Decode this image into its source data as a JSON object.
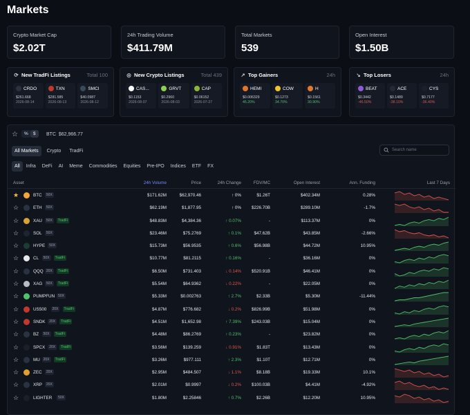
{
  "page_title": "Markets",
  "stats": [
    {
      "label": "Crypto Market Cap",
      "value": "$2.02T"
    },
    {
      "label": "24h Trading Volume",
      "value": "$411.79M"
    },
    {
      "label": "Total Markets",
      "value": "539"
    },
    {
      "label": "Open Interest",
      "value": "$1.50B"
    }
  ],
  "cards": [
    {
      "icon": "tradfi-icon",
      "glyph": "⟳",
      "title": "New TradFi Listings",
      "total": "Total 100",
      "items": [
        {
          "sym": "CRDO",
          "color": "#2a3140",
          "price": "$261.668",
          "sub": "2026-08-14",
          "dir": ""
        },
        {
          "sym": "TXN",
          "color": "#c0392b",
          "price": "$281.585",
          "sub": "2026-08-13",
          "dir": ""
        },
        {
          "sym": "SMCI",
          "color": "#3b4a5a",
          "price": "$40.0987",
          "sub": "2026-08-12",
          "dir": ""
        }
      ]
    },
    {
      "icon": "crypto-icon",
      "glyph": "◎",
      "title": "New Crypto Listings",
      "total": "Total 439",
      "items": [
        {
          "sym": "CAS...",
          "color": "#ffffff",
          "price": "$0.1153",
          "sub": "2026-08-07",
          "dir": ""
        },
        {
          "sym": "GRVT",
          "color": "#8fd14f",
          "price": "$0.2960",
          "sub": "2026-08-03",
          "dir": ""
        },
        {
          "sym": "CAP",
          "color": "#8fb43a",
          "price": "$0.06152",
          "sub": "2026-07-27",
          "dir": ""
        }
      ]
    },
    {
      "icon": "trending-up-icon",
      "glyph": "↗",
      "title": "Top Gainers",
      "total": "24h",
      "items": [
        {
          "sym": "HEMI",
          "color": "#e0762a",
          "price": "$0.006329",
          "sub": "45.20%",
          "dir": "up"
        },
        {
          "sym": "COW",
          "color": "#f2c230",
          "price": "$0.1273",
          "sub": "34.70%",
          "dir": "up"
        },
        {
          "sym": "H",
          "color": "#e07a2a",
          "price": "$0.1561",
          "sub": "30.90%",
          "dir": "up"
        }
      ]
    },
    {
      "icon": "trending-down-icon",
      "glyph": "↘",
      "title": "Top Losers",
      "total": "24h",
      "items": [
        {
          "sym": "BEAT",
          "color": "#8e5bd6",
          "price": "$0.3442",
          "sub": "-46.50%",
          "dir": "dn"
        },
        {
          "sym": "ACE",
          "color": "#222a36",
          "price": "$0.1489",
          "sub": "-38.10%",
          "dir": "dn"
        },
        {
          "sym": "CYS",
          "color": "#1a1f29",
          "price": "$0.7177",
          "sub": "-36.40%",
          "dir": "dn"
        }
      ]
    }
  ],
  "toolbar": {
    "percent": "%",
    "dollar": "$",
    "btc_label": "BTC",
    "btc_price": "$62,966.77"
  },
  "tabs": [
    "All Markets",
    "Crypto",
    "TradFi"
  ],
  "search": {
    "placeholder": "Search name"
  },
  "categories": [
    "All",
    "Infra",
    "DeFi",
    "AI",
    "Meme",
    "Commodities",
    "Equities",
    "Pre-IPO",
    "Indices",
    "ETF",
    "FX"
  ],
  "columns": {
    "asset": "Asset",
    "volume": "24h Volume",
    "price": "Price",
    "change": "24h Change",
    "fdv": "FDV/MC",
    "oi": "Open Interest",
    "funding": "Ann. Funding",
    "last7": "Last 7 Days"
  },
  "rows": [
    {
      "sym": "BTC",
      "lev": "50X",
      "tradfi": "",
      "color": "#f2a33a",
      "fav": true,
      "vol": "$171.62M",
      "price": "$62,970.46",
      "chg": "0%",
      "dir": "up",
      "fdv": "$1.26T",
      "oi": "$402.34M",
      "fund": "0.28%",
      "trend": "down",
      "spark": [
        8,
        7,
        9,
        8,
        10,
        9,
        11,
        10,
        12,
        11,
        12,
        13
      ]
    },
    {
      "sym": "ETH",
      "lev": "50X",
      "tradfi": "",
      "color": "#2a3140",
      "fav": false,
      "vol": "$62.19M",
      "price": "$1,877.95",
      "chg": "0%",
      "dir": "up",
      "fdv": "$226.70B",
      "oi": "$289.10M",
      "fund": "-1.7%",
      "trend": "down",
      "spark": [
        6,
        7,
        6,
        8,
        9,
        8,
        10,
        9,
        11,
        10,
        12,
        12
      ]
    },
    {
      "sym": "XAU",
      "lev": "50X",
      "tradfi": "TradFi",
      "color": "#d6a531",
      "fav": false,
      "vol": "$48.83M",
      "price": "$4,384.36",
      "chg": "0.07%",
      "dir": "up",
      "fdv": "-",
      "oi": "$113.37M",
      "fund": "0%",
      "trend": "up",
      "spark": [
        12,
        11,
        12,
        10,
        9,
        10,
        8,
        7,
        8,
        6,
        7,
        5
      ]
    },
    {
      "sym": "SOL",
      "lev": "50X",
      "tradfi": "",
      "color": "#1d2530",
      "fav": false,
      "vol": "$23.46M",
      "price": "$75.2769",
      "chg": "0.1%",
      "dir": "up",
      "fdv": "$47.62B",
      "oi": "$43.85M",
      "fund": "-2.66%",
      "trend": "down",
      "spark": [
        5,
        7,
        6,
        8,
        9,
        8,
        10,
        11,
        10,
        12,
        11,
        13
      ]
    },
    {
      "sym": "HYPE",
      "lev": "50X",
      "tradfi": "",
      "color": "#1b3b33",
      "fav": false,
      "vol": "$15.73M",
      "price": "$56.9535",
      "chg": "0.6%",
      "dir": "up",
      "fdv": "$56.98B",
      "oi": "$44.72M",
      "fund": "10.95%",
      "trend": "up",
      "spark": [
        12,
        11,
        10,
        11,
        9,
        8,
        9,
        7,
        6,
        7,
        5,
        4
      ]
    },
    {
      "sym": "CL",
      "lev": "50X",
      "tradfi": "TradFi",
      "color": "#e6e8ec",
      "fav": false,
      "vol": "$10.77M",
      "price": "$81.2115",
      "chg": "0.16%",
      "dir": "up",
      "fdv": "-",
      "oi": "$36.16M",
      "fund": "0%",
      "trend": "up",
      "spark": [
        11,
        12,
        10,
        9,
        10,
        8,
        9,
        7,
        8,
        6,
        5,
        6
      ]
    },
    {
      "sym": "QQQ",
      "lev": "20X",
      "tradfi": "TradFi",
      "color": "#2a3140",
      "fav": false,
      "vol": "$6.50M",
      "price": "$731.403",
      "chg": "0.14%",
      "dir": "dn",
      "fdv": "$520.91B",
      "oi": "$46.41M",
      "fund": "0%",
      "trend": "up",
      "spark": [
        10,
        12,
        11,
        9,
        10,
        8,
        7,
        8,
        6,
        7,
        5,
        6
      ]
    },
    {
      "sym": "XAG",
      "lev": "50X",
      "tradfi": "TradFi",
      "color": "#b8bcc4",
      "fav": false,
      "vol": "$5.54M",
      "price": "$64.9362",
      "chg": "0.22%",
      "dir": "dn",
      "fdv": "-",
      "oi": "$22.05M",
      "fund": "0%",
      "trend": "up",
      "spark": [
        12,
        10,
        11,
        9,
        10,
        8,
        9,
        7,
        8,
        6,
        7,
        5
      ]
    },
    {
      "sym": "PUMPFUN",
      "lev": "50X",
      "tradfi": "",
      "color": "#4fc36a",
      "fav": false,
      "vol": "$5.33M",
      "price": "$0.002763",
      "chg": "2.7%",
      "dir": "up",
      "fdv": "$2.33B",
      "oi": "$5.30M",
      "fund": "-11.44%",
      "trend": "up",
      "spark": [
        13,
        12,
        12,
        11,
        10,
        10,
        9,
        8,
        7,
        6,
        5,
        5
      ]
    },
    {
      "sym": "US500",
      "lev": "20X",
      "tradfi": "TradFi",
      "color": "#c0392b",
      "fav": false,
      "vol": "$4.87M",
      "price": "$776.682",
      "chg": "0.2%",
      "dir": "dn",
      "fdv": "$826.99B",
      "oi": "$51.98M",
      "fund": "0%",
      "trend": "up",
      "spark": [
        11,
        12,
        10,
        11,
        9,
        10,
        8,
        7,
        8,
        6,
        5,
        6
      ]
    },
    {
      "sym": "SNDK",
      "lev": "20X",
      "tradfi": "TradFi",
      "color": "#c0392b",
      "fav": false,
      "vol": "$4.51M",
      "price": "$1,652.98",
      "chg": "7.39%",
      "dir": "up",
      "fdv": "$243.03B",
      "oi": "$15.04M",
      "fund": "0%",
      "trend": "up",
      "spark": [
        13,
        12,
        11,
        12,
        10,
        9,
        8,
        7,
        6,
        5,
        4,
        3
      ]
    },
    {
      "sym": "BZ",
      "lev": "50X",
      "tradfi": "TradFi",
      "color": "#2a3140",
      "fav": false,
      "vol": "$4.48M",
      "price": "$86.2769",
      "chg": "0.23%",
      "dir": "up",
      "fdv": "-",
      "oi": "$23.82M",
      "fund": "0%",
      "trend": "up",
      "spark": [
        12,
        11,
        12,
        10,
        9,
        10,
        8,
        9,
        7,
        6,
        7,
        5
      ]
    },
    {
      "sym": "SPCX",
      "lev": "20X",
      "tradfi": "TradFi",
      "color": "#1a1f29",
      "fav": false,
      "vol": "$3.56M",
      "price": "$139.259",
      "chg": "0.91%",
      "dir": "dn",
      "fdv": "$1.83T",
      "oi": "$13.43M",
      "fund": "0%",
      "trend": "up",
      "spark": [
        11,
        12,
        10,
        9,
        10,
        8,
        9,
        7,
        6,
        7,
        5,
        6
      ]
    },
    {
      "sym": "MU",
      "lev": "20X",
      "tradfi": "TradFi",
      "color": "#2a3140",
      "fav": false,
      "vol": "$3.26M",
      "price": "$977.111",
      "chg": "2.3%",
      "dir": "up",
      "fdv": "$1.10T",
      "oi": "$12.71M",
      "fund": "0%",
      "trend": "up",
      "spark": [
        13,
        12,
        11,
        10,
        11,
        9,
        8,
        7,
        6,
        5,
        4,
        3
      ]
    },
    {
      "sym": "ZEC",
      "lev": "20X",
      "tradfi": "",
      "color": "#e0a030",
      "fav": false,
      "vol": "$2.95M",
      "price": "$484.507",
      "chg": "1.1%",
      "dir": "dn",
      "fdv": "$8.18B",
      "oi": "$19.33M",
      "fund": "10.1%",
      "trend": "down",
      "spark": [
        6,
        7,
        8,
        7,
        9,
        8,
        10,
        9,
        11,
        10,
        12,
        11
      ]
    },
    {
      "sym": "XRP",
      "lev": "20X",
      "tradfi": "",
      "color": "#2a3140",
      "fav": false,
      "vol": "$2.01M",
      "price": "$0.9997",
      "chg": "0.2%",
      "dir": "dn",
      "fdv": "$100.03B",
      "oi": "$4.41M",
      "fund": "-4.92%",
      "trend": "down",
      "spark": [
        7,
        6,
        8,
        7,
        9,
        10,
        9,
        11,
        10,
        12,
        11,
        12
      ]
    },
    {
      "sym": "LIGHTER",
      "lev": "50X",
      "tradfi": "",
      "color": "#1a1f29",
      "fav": false,
      "vol": "$1.80M",
      "price": "$2.25846",
      "chg": "0.7%",
      "dir": "up",
      "fdv": "$2.26B",
      "oi": "$12.20M",
      "fund": "10.95%",
      "trend": "down",
      "spark": [
        8,
        9,
        7,
        8,
        10,
        9,
        11,
        10,
        12,
        11,
        13,
        12
      ]
    }
  ],
  "colors": {
    "up": "#4fc36a",
    "down": "#e0574f",
    "favorite": "#f2c230",
    "background": "#0b0e14"
  }
}
